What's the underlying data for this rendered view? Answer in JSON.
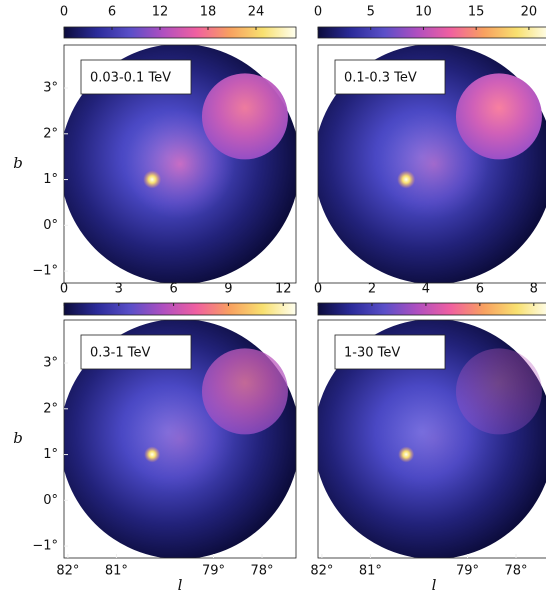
{
  "chart_data": [
    {
      "type": "skymap",
      "label": "0.03-0.1 TeV",
      "colors": [
        "#0c0c3c",
        "#2b2b9a",
        "#5a4fc8",
        "#b04fc0",
        "#f060a0",
        "#f8a060",
        "#f8e070",
        "#fffff0"
      ],
      "clim": [
        0,
        29
      ],
      "cticks": [
        0,
        6,
        12,
        18,
        24
      ],
      "xlim": [
        82.08,
        77.3
      ],
      "ylim": [
        -1.26,
        3.94
      ],
      "ylabel": "b",
      "yticks": [
        {
          "value": 3,
          "label": "3°"
        },
        {
          "value": 2,
          "label": "2°"
        },
        {
          "value": 1,
          "label": "1°"
        },
        {
          "value": 0,
          "label": "0°"
        },
        {
          "value": -1,
          "label": "−1°"
        }
      ]
    },
    {
      "type": "skymap",
      "label": "0.1-0.3 TeV",
      "colors": [
        "#0c0c3c",
        "#2b2b9a",
        "#5a4fc8",
        "#b04fc0",
        "#f060a0",
        "#f8a060",
        "#f8e070",
        "#fffff0"
      ],
      "clim": [
        0,
        22
      ],
      "cticks": [
        0,
        5,
        10,
        15,
        20
      ],
      "xlim": [
        82.08,
        77.3
      ],
      "ylim": [
        -1.26,
        3.94
      ]
    },
    {
      "type": "skymap",
      "label": "0.3-1 TeV",
      "colors": [
        "#0c0c3c",
        "#2b2b9a",
        "#5a4fc8",
        "#b04fc0",
        "#f060a0",
        "#f8a060",
        "#f8e070",
        "#fffff0"
      ],
      "clim": [
        0,
        12.7
      ],
      "cticks": [
        0,
        3,
        6,
        9,
        12
      ],
      "xlim": [
        82.08,
        77.3
      ],
      "ylim": [
        -1.26,
        3.94
      ],
      "ylabel": "b",
      "xlabel": "l",
      "yticks": [
        {
          "value": 3,
          "label": "3°"
        },
        {
          "value": 2,
          "label": "2°"
        },
        {
          "value": 1,
          "label": "1°"
        },
        {
          "value": 0,
          "label": "0°"
        },
        {
          "value": -1,
          "label": "−1°"
        }
      ],
      "xticks": [
        {
          "value": 82,
          "label": "82°"
        },
        {
          "value": 81,
          "label": "81°"
        },
        {
          "value": 79,
          "label": "79°"
        },
        {
          "value": 78,
          "label": "78°"
        }
      ]
    },
    {
      "type": "skymap",
      "label": "1-30 TeV",
      "colors": [
        "#0c0c3c",
        "#2b2b9a",
        "#5a4fc8",
        "#b04fc0",
        "#f060a0",
        "#f8a060",
        "#f8e070",
        "#fffff0"
      ],
      "clim": [
        0,
        8.6
      ],
      "cticks": [
        0,
        2,
        4,
        6,
        8
      ],
      "xlim": [
        82.08,
        77.3
      ],
      "ylim": [
        -1.26,
        3.94
      ],
      "xlabel": "l",
      "xticks": [
        {
          "value": 82,
          "label": "82°"
        },
        {
          "value": 81,
          "label": "81°"
        },
        {
          "value": 79,
          "label": "79°"
        },
        {
          "value": 78,
          "label": "78°"
        }
      ]
    }
  ]
}
